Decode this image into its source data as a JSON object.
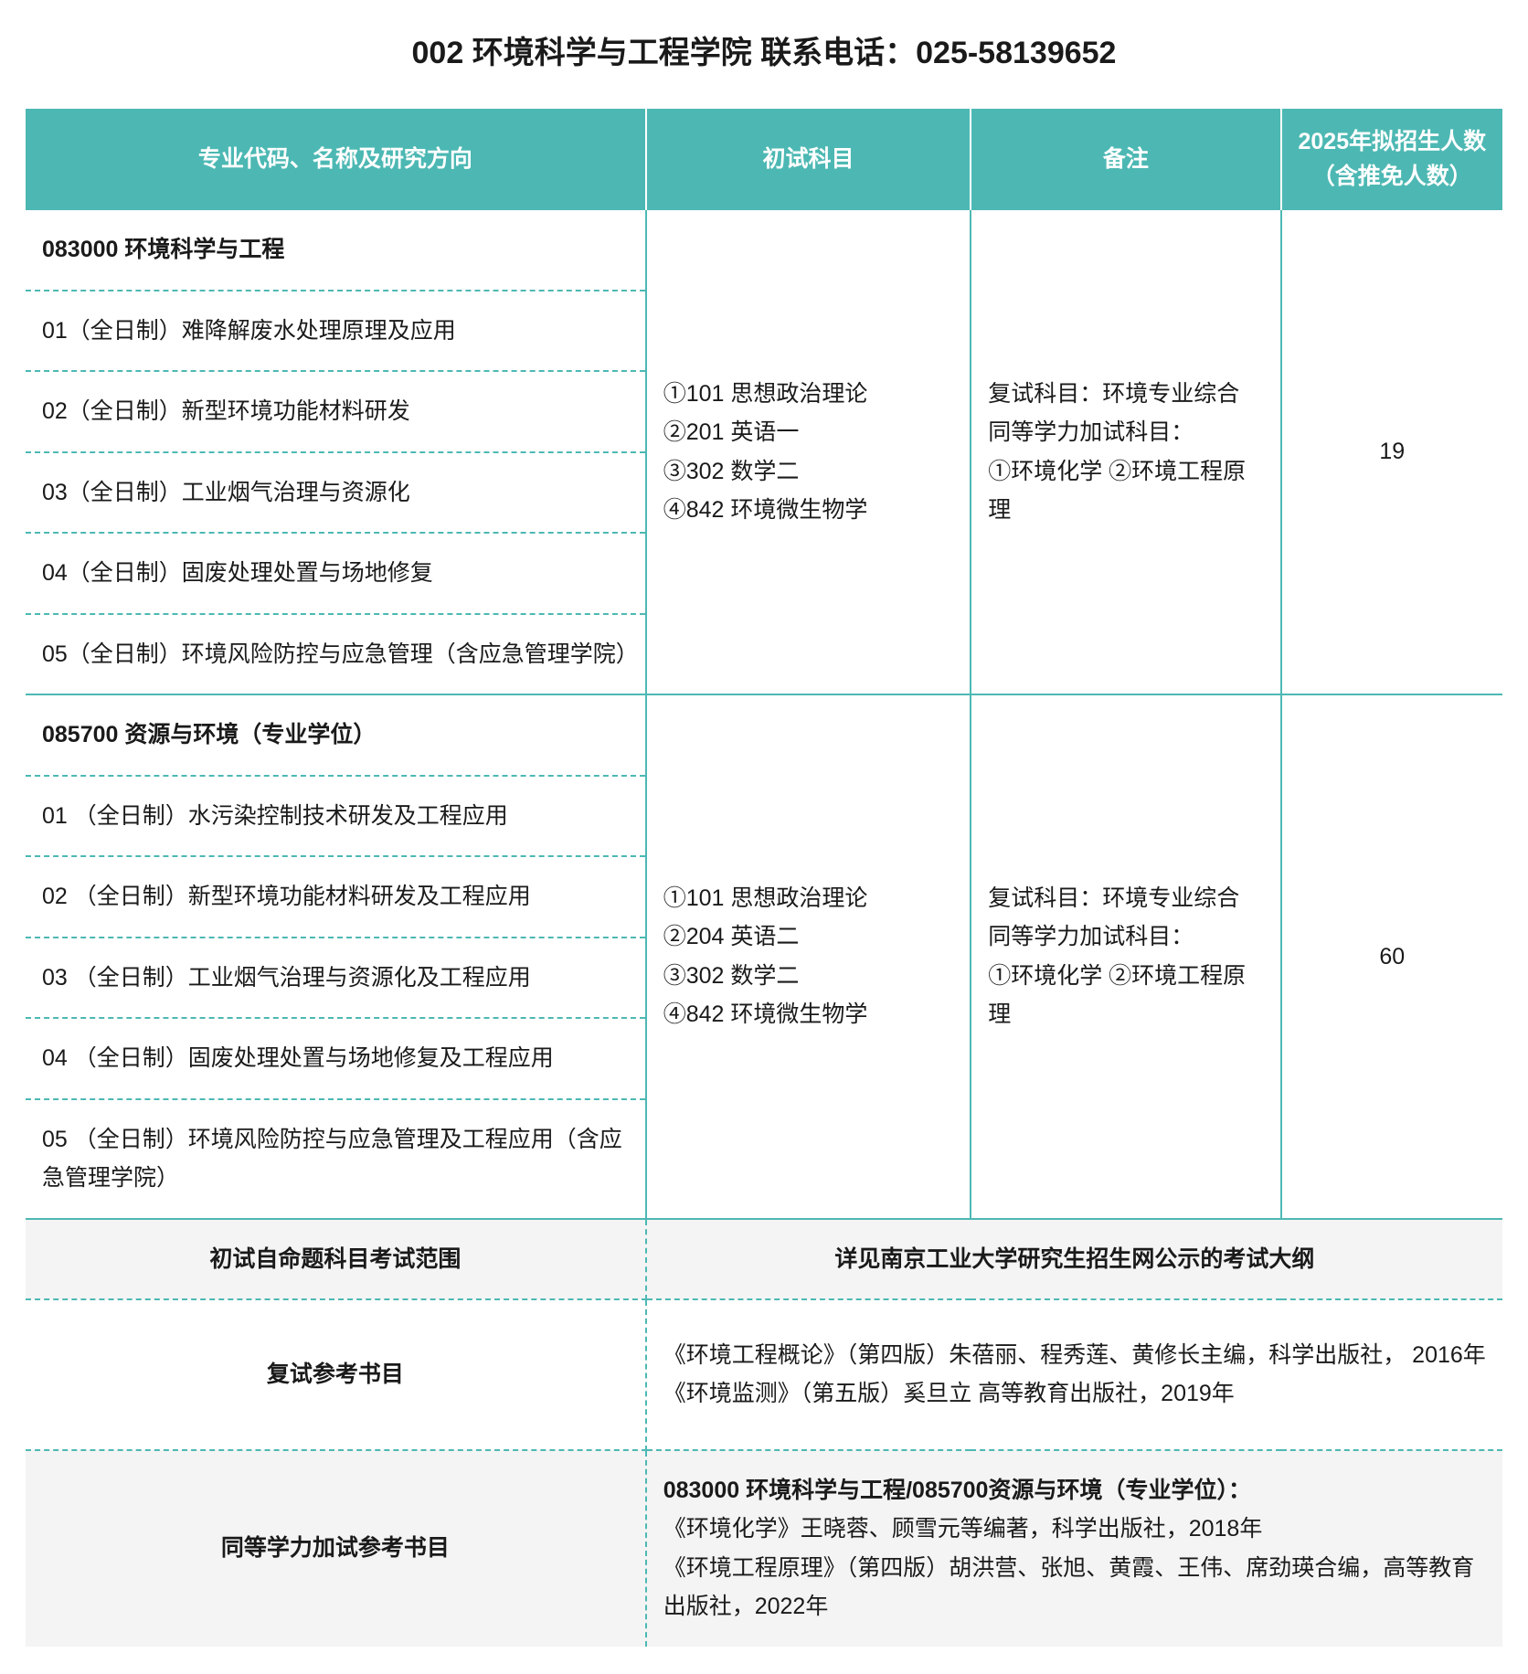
{
  "page_title": "002 环境科学与工程学院 联系电话：025-58139652",
  "headers": {
    "major": "专业代码、名称及研究方向",
    "exam": "初试科目",
    "note": "备注",
    "quota": "2025年拟招生人数（含推免人数）"
  },
  "group1": {
    "heading": "083000 环境科学与工程",
    "tracks": [
      "01（全日制）难降解废水处理原理及应用",
      "02（全日制）新型环境功能材料研发",
      "03（全日制）工业烟气治理与资源化",
      "04（全日制）固废处理处置与场地修复",
      "05（全日制）环境风险防控与应急管理（含应急管理学院）"
    ],
    "exam": "①101 思想政治理论\n②201 英语一\n③302 数学二\n④842 环境微生物学",
    "note": "复试科目：环境专业综合\n同等学力加试科目：\n①环境化学 ②环境工程原理",
    "quota": "19"
  },
  "group2": {
    "heading": "085700 资源与环境（专业学位）",
    "tracks": [
      "01 （全日制）水污染控制技术研发及工程应用",
      "02 （全日制）新型环境功能材料研发及工程应用",
      "03 （全日制）工业烟气治理与资源化及工程应用",
      "04 （全日制）固废处理处置与场地修复及工程应用",
      "05 （全日制）环境风险防控与应急管理及工程应用（含应急管理学院）"
    ],
    "exam": "①101 思想政治理论\n②204 英语二\n③302 数学二\n④842 环境微生物学",
    "note": "复试科目：环境专业综合\n同等学力加试科目：\n①环境化学 ②环境工程原理",
    "quota": "60"
  },
  "scope_row": {
    "label": "初试自命题科目考试范围",
    "value": "详见南京工业大学研究生招生网公示的考试大纲"
  },
  "retest_books": {
    "label": "复试参考书目",
    "lines": [
      "《环境工程概论》（第四版）朱蓓丽、程秀莲、黄修长主编，科学出版社， 2016年",
      "《环境监测》（第五版）奚旦立 高等教育出版社，2019年"
    ]
  },
  "equiv_books": {
    "label": "同等学力加试参考书目",
    "heading": "083000 环境科学与工程/085700资源与环境（专业学位）：",
    "lines": [
      "《环境化学》王晓蓉、顾雪元等编著，科学出版社，2018年",
      "《环境工程原理》（第四版）胡洪营、张旭、黄霞、王伟、席劲瑛合编，高等教育出版社，2022年"
    ]
  },
  "colors": {
    "header_bg": "#4db8b3",
    "header_text": "#ffffff",
    "border": "#4db8b3",
    "gray_row": "#f4f4f4",
    "text": "#1a1a1a"
  }
}
